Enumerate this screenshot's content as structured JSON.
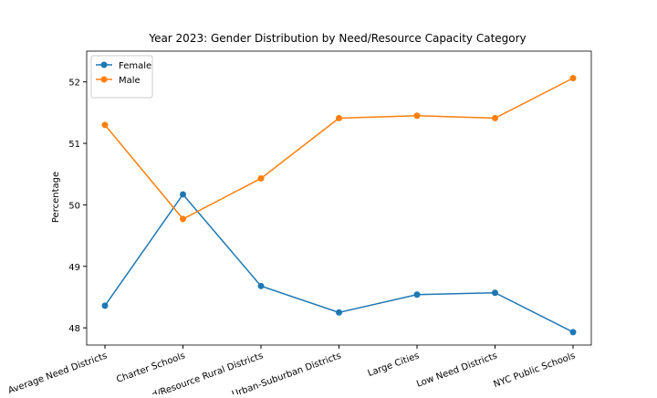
{
  "chart_data": {
    "type": "line",
    "title": "Year 2023: Gender Distribution by Need/Resource Capacity Category",
    "y_label": "Percentage",
    "categories": [
      "Average Need Districts",
      "Charter Schools",
      "d/Resource Rural Districts",
      "Urban-Suburban Districts",
      "Large Cities",
      "Low Need Districts",
      "NYC Public Schools"
    ],
    "series": [
      {
        "name": "Female",
        "color": "#1f77b4",
        "values": [
          48.36,
          50.17,
          48.68,
          48.25,
          48.54,
          48.57,
          47.93
        ]
      },
      {
        "name": "Male",
        "color": "#ff7f0e",
        "values": [
          51.3,
          49.77,
          50.43,
          51.41,
          51.45,
          51.41,
          52.06
        ]
      }
    ],
    "ylim": [
      47.72,
      52.5
    ],
    "yticks": [
      48,
      49,
      50,
      51,
      52
    ],
    "grid": false,
    "legend": "upper left"
  }
}
